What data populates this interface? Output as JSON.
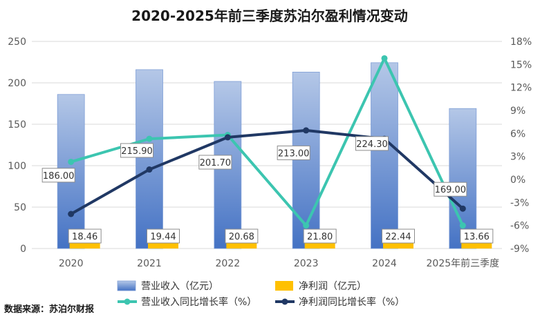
{
  "chart_data": {
    "type": "bar",
    "title": "2020-2025年前三季度苏泊尔盈利情况变动",
    "categories": [
      "2020",
      "2021",
      "2022",
      "2023",
      "2024",
      "2025年前三季度"
    ],
    "series": [
      {
        "name": "营业收入（亿元）",
        "type": "bar",
        "axis": "left",
        "values": [
          186.0,
          215.9,
          201.7,
          213.0,
          224.3,
          169.0
        ],
        "labels": [
          "186.00",
          "215.90",
          "201.70",
          "213.00",
          "224.30",
          "169.00"
        ]
      },
      {
        "name": "净利润（亿元）",
        "type": "bar",
        "axis": "left",
        "values": [
          18.46,
          19.44,
          20.68,
          21.8,
          22.44,
          13.66
        ],
        "labels": [
          "18.46",
          "19.44",
          "20.68",
          "21.80",
          "22.44",
          "13.66"
        ]
      },
      {
        "name": "营业收入同比增长率（%）",
        "type": "line",
        "axis": "right",
        "values": [
          2.3,
          5.3,
          5.8,
          -6.0,
          15.8,
          -6.0
        ]
      },
      {
        "name": "净利润同比增长率（%）",
        "type": "line",
        "axis": "right",
        "values": [
          -4.5,
          1.3,
          5.5,
          6.4,
          5.3,
          -3.8
        ]
      }
    ],
    "y_left": {
      "min": 0,
      "max": 250,
      "ticks": [
        "0",
        "50",
        "100",
        "150",
        "200",
        "250"
      ]
    },
    "y_right": {
      "min": -9,
      "max": 18,
      "ticks": [
        "-9%",
        "-6%",
        "-3%",
        "0%",
        "3%",
        "6%",
        "9%",
        "12%",
        "15%",
        "18%"
      ]
    },
    "legend_position": "bottom",
    "grid": true
  },
  "source": "数据来源：苏泊尔财报",
  "colors": {
    "revenue_bar_top": "#b4c7e7",
    "revenue_bar_bottom": "#4472c4",
    "profit_bar": "#ffc000",
    "revenue_growth_line": "#3cc5b0",
    "profit_growth_line": "#203864",
    "grid": "#d9d9d9"
  }
}
